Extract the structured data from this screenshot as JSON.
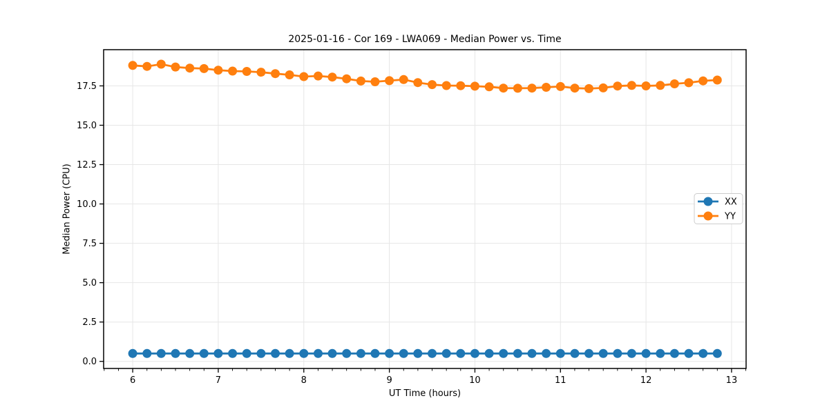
{
  "chart_data": {
    "type": "line",
    "title": "2025-01-16 - Cor 169 - LWA069 - Median Power vs. Time",
    "xlabel": "UT Time (hours)",
    "ylabel": "Median Power (CPU)",
    "xlim": [
      5.66,
      13.17
    ],
    "ylim": [
      -0.45,
      19.8
    ],
    "xticks": [
      6,
      7,
      8,
      9,
      10,
      11,
      12,
      13
    ],
    "yticks": [
      0.0,
      2.5,
      5.0,
      7.5,
      10.0,
      12.5,
      15.0,
      17.5
    ],
    "x_minor_step_hours": 0.1667,
    "grid": true,
    "grid_color": "#e6e6e6",
    "spine_color": "#000000",
    "text_color": "#000000",
    "legend": {
      "position": "center-right",
      "bg": "#ffffff",
      "border": "#cccccc"
    },
    "x": [
      6.0,
      6.167,
      6.333,
      6.5,
      6.667,
      6.833,
      7.0,
      7.167,
      7.333,
      7.5,
      7.667,
      7.833,
      8.0,
      8.167,
      8.333,
      8.5,
      8.667,
      8.833,
      9.0,
      9.167,
      9.333,
      9.5,
      9.667,
      9.833,
      10.0,
      10.167,
      10.333,
      10.5,
      10.667,
      10.833,
      11.0,
      11.167,
      11.333,
      11.5,
      11.667,
      11.833,
      12.0,
      12.167,
      12.333,
      12.5,
      12.667,
      12.833
    ],
    "series": [
      {
        "name": "XX",
        "color": "#1f77b4",
        "values": [
          0.5,
          0.5,
          0.5,
          0.5,
          0.5,
          0.5,
          0.5,
          0.5,
          0.5,
          0.5,
          0.5,
          0.5,
          0.5,
          0.5,
          0.5,
          0.5,
          0.5,
          0.5,
          0.5,
          0.5,
          0.5,
          0.5,
          0.5,
          0.5,
          0.5,
          0.5,
          0.5,
          0.5,
          0.5,
          0.5,
          0.5,
          0.5,
          0.5,
          0.5,
          0.5,
          0.5,
          0.5,
          0.5,
          0.5,
          0.5,
          0.5,
          0.5
        ]
      },
      {
        "name": "YY",
        "color": "#ff7f0e",
        "values": [
          18.8,
          18.74,
          18.88,
          18.7,
          18.63,
          18.6,
          18.5,
          18.44,
          18.42,
          18.37,
          18.28,
          18.2,
          18.09,
          18.13,
          18.06,
          17.95,
          17.81,
          17.76,
          17.83,
          17.9,
          17.71,
          17.58,
          17.52,
          17.51,
          17.48,
          17.44,
          17.36,
          17.35,
          17.36,
          17.41,
          17.46,
          17.36,
          17.33,
          17.37,
          17.49,
          17.53,
          17.5,
          17.53,
          17.63,
          17.7,
          17.82,
          17.87
        ]
      }
    ]
  }
}
